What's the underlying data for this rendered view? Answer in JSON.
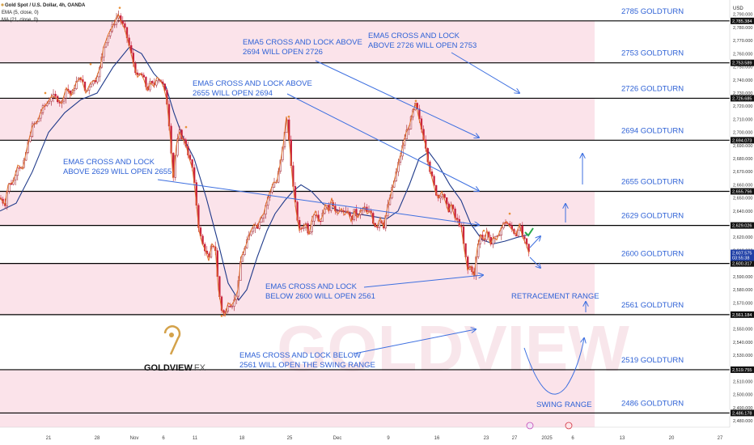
{
  "header": {
    "symbol": "Gold Spot / U.S. Dollar, 4h, OANDA",
    "ema": "EMA (5, close, 0)",
    "ma": "MA (21, close, 0)",
    "currency": "USD"
  },
  "logo": {
    "brand": "GOLDVIEW",
    "suffix": "FX"
  },
  "watermark": "GOLDVIEW",
  "colors": {
    "band": "#fbe3ea",
    "line": "#000000",
    "text_blue": "#2f62d6",
    "arrow_blue": "#3d6fe0",
    "ema": "#e0702a",
    "ma": "#1f3a8a",
    "up": "#9e1b2a",
    "down": "#c8203a",
    "gold": "#d4a24a",
    "check": "#2aa84a"
  },
  "chart_data": {
    "type": "candlestick",
    "title": "Gold Spot / U.S. Dollar, 4h, OANDA",
    "ylim": [
      2477,
      2796
    ],
    "ytick_step": 10,
    "x_ticks": [
      "21",
      "28",
      "Nov",
      "6",
      "11",
      "18",
      "25",
      "Dec",
      "9",
      "16",
      "23",
      "27",
      "2025",
      "6",
      "13",
      "20",
      "27"
    ],
    "goldturn_levels": [
      {
        "value": 2785,
        "label": "2785 GOLDTURN",
        "tag": "2,785.384"
      },
      {
        "value": 2753,
        "label": "2753 GOLDTURN",
        "tag": "2,753.589"
      },
      {
        "value": 2726,
        "label": "2726 GOLDTURN",
        "tag": "2,726.685"
      },
      {
        "value": 2694,
        "label": "2694 GOLDTURN",
        "tag": "2,694.073"
      },
      {
        "value": 2655,
        "label": "2655 GOLDTURN",
        "tag": "2,655.756"
      },
      {
        "value": 2629,
        "label": "2629 GOLDTURN",
        "tag": "2,629.026"
      },
      {
        "value": 2600,
        "label": "2600 GOLDTURN",
        "tag": "2,600.317"
      },
      {
        "value": 2561,
        "label": "2561 GOLDTURN",
        "tag": "2,561.184"
      },
      {
        "value": 2519,
        "label": "2519 GOLDTURN",
        "tag": "2,519.755"
      },
      {
        "value": 2486,
        "label": "2486 GOLDTURN",
        "tag": "2,486.178"
      }
    ],
    "current_price": {
      "value": 2607.5,
      "tag": "2,607.575",
      "countdown": "03:55:38"
    },
    "annotations": [
      {
        "lines": [
          "EMA5 CROSS AND LOCK ABOVE",
          "2694 WILL OPEN 2726"
        ]
      },
      {
        "lines": [
          "EMA5 CROSS AND LOCK",
          "ABOVE 2726 WILL OPEN 2753"
        ]
      },
      {
        "lines": [
          "EMA5 CROSS AND LOCK ABOVE",
          "2655 WILL OPEN 2694"
        ]
      },
      {
        "lines": [
          "EMA5 CROSS AND LOCK",
          "ABOVE 2629 WILL OPEN 2655"
        ]
      },
      {
        "lines": [
          "EMA5 CROSS AND LOCK",
          "BELOW 2600 WILL OPEN 2561"
        ]
      },
      {
        "lines": [
          "EMA5 CROSS AND LOCK BELOW",
          "2561 WILL OPEN THE SWING RANGE"
        ]
      }
    ],
    "range_labels": [
      "RETRACEMENT RANGE",
      "SWING RANGE"
    ],
    "price_path": [
      [
        0,
        2650
      ],
      [
        6,
        2645
      ],
      [
        10,
        2660
      ],
      [
        16,
        2662
      ],
      [
        22,
        2675
      ],
      [
        28,
        2672
      ],
      [
        34,
        2690
      ],
      [
        40,
        2705
      ],
      [
        46,
        2708
      ],
      [
        52,
        2718
      ],
      [
        58,
        2722
      ],
      [
        64,
        2728
      ],
      [
        70,
        2726
      ],
      [
        76,
        2722
      ],
      [
        82,
        2734
      ],
      [
        88,
        2728
      ],
      [
        94,
        2738
      ],
      [
        100,
        2742
      ],
      [
        106,
        2730
      ],
      [
        112,
        2738
      ],
      [
        118,
        2740
      ],
      [
        124,
        2750
      ],
      [
        128,
        2765
      ],
      [
        134,
        2775
      ],
      [
        140,
        2782
      ],
      [
        146,
        2790
      ],
      [
        150,
        2784
      ],
      [
        154,
        2779
      ],
      [
        158,
        2770
      ],
      [
        162,
        2760
      ],
      [
        166,
        2750
      ],
      [
        170,
        2742
      ],
      [
        174,
        2745
      ],
      [
        178,
        2740
      ],
      [
        182,
        2732
      ],
      [
        186,
        2738
      ],
      [
        190,
        2735
      ],
      [
        194,
        2742
      ],
      [
        198,
        2740
      ],
      [
        202,
        2735
      ],
      [
        206,
        2725
      ],
      [
        210,
        2700
      ],
      [
        214,
        2665
      ],
      [
        218,
        2690
      ],
      [
        222,
        2700
      ],
      [
        226,
        2695
      ],
      [
        230,
        2690
      ],
      [
        234,
        2680
      ],
      [
        238,
        2672
      ],
      [
        242,
        2650
      ],
      [
        246,
        2625
      ],
      [
        250,
        2615
      ],
      [
        254,
        2610
      ],
      [
        258,
        2602
      ],
      [
        262,
        2615
      ],
      [
        266,
        2612
      ],
      [
        270,
        2580
      ],
      [
        274,
        2565
      ],
      [
        278,
        2560
      ],
      [
        282,
        2570
      ],
      [
        286,
        2568
      ],
      [
        290,
        2572
      ],
      [
        294,
        2580
      ],
      [
        298,
        2605
      ],
      [
        302,
        2610
      ],
      [
        306,
        2618
      ],
      [
        310,
        2625
      ],
      [
        314,
        2630
      ],
      [
        318,
        2628
      ],
      [
        322,
        2635
      ],
      [
        326,
        2638
      ],
      [
        330,
        2648
      ],
      [
        334,
        2655
      ],
      [
        338,
        2662
      ],
      [
        342,
        2662
      ],
      [
        346,
        2675
      ],
      [
        350,
        2690
      ],
      [
        354,
        2712
      ],
      [
        358,
        2690
      ],
      [
        362,
        2660
      ],
      [
        366,
        2640
      ],
      [
        370,
        2625
      ],
      [
        374,
        2628
      ],
      [
        378,
        2630
      ],
      [
        382,
        2622
      ],
      [
        386,
        2635
      ],
      [
        390,
        2640
      ],
      [
        394,
        2632
      ],
      [
        398,
        2635
      ],
      [
        402,
        2645
      ],
      [
        406,
        2640
      ],
      [
        410,
        2650
      ],
      [
        414,
        2640
      ],
      [
        418,
        2638
      ],
      [
        422,
        2642
      ],
      [
        426,
        2637
      ],
      [
        430,
        2640
      ],
      [
        434,
        2632
      ],
      [
        438,
        2640
      ],
      [
        442,
        2635
      ],
      [
        446,
        2640
      ],
      [
        450,
        2643
      ],
      [
        454,
        2638
      ],
      [
        458,
        2640
      ],
      [
        462,
        2630
      ],
      [
        466,
        2628
      ],
      [
        470,
        2635
      ],
      [
        474,
        2628
      ],
      [
        478,
        2640
      ],
      [
        482,
        2650
      ],
      [
        486,
        2660
      ],
      [
        490,
        2670
      ],
      [
        494,
        2680
      ],
      [
        498,
        2690
      ],
      [
        502,
        2700
      ],
      [
        506,
        2705
      ],
      [
        510,
        2715
      ],
      [
        514,
        2722
      ],
      [
        518,
        2710
      ],
      [
        522,
        2700
      ],
      [
        526,
        2690
      ],
      [
        530,
        2675
      ],
      [
        534,
        2665
      ],
      [
        538,
        2655
      ],
      [
        542,
        2650
      ],
      [
        546,
        2655
      ],
      [
        550,
        2648
      ],
      [
        554,
        2640
      ],
      [
        558,
        2645
      ],
      [
        562,
        2635
      ],
      [
        566,
        2632
      ],
      [
        570,
        2628
      ],
      [
        574,
        2610
      ],
      [
        578,
        2595
      ],
      [
        582,
        2598
      ],
      [
        586,
        2590
      ],
      [
        590,
        2612
      ],
      [
        594,
        2622
      ],
      [
        598,
        2618
      ],
      [
        602,
        2625
      ],
      [
        606,
        2615
      ],
      [
        610,
        2620
      ],
      [
        614,
        2618
      ],
      [
        618,
        2625
      ],
      [
        622,
        2630
      ],
      [
        626,
        2632
      ],
      [
        630,
        2628
      ],
      [
        634,
        2625
      ],
      [
        638,
        2622
      ],
      [
        642,
        2630
      ],
      [
        646,
        2620
      ],
      [
        650,
        2615
      ],
      [
        654,
        2607.5
      ]
    ],
    "ma_path": [
      [
        0,
        2640
      ],
      [
        20,
        2646
      ],
      [
        40,
        2670
      ],
      [
        60,
        2700
      ],
      [
        80,
        2715
      ],
      [
        100,
        2725
      ],
      [
        120,
        2730
      ],
      [
        140,
        2750
      ],
      [
        160,
        2765
      ],
      [
        175,
        2760
      ],
      [
        190,
        2745
      ],
      [
        205,
        2735
      ],
      [
        215,
        2715
      ],
      [
        225,
        2698
      ],
      [
        240,
        2680
      ],
      [
        255,
        2650
      ],
      [
        270,
        2615
      ],
      [
        282,
        2585
      ],
      [
        295,
        2572
      ],
      [
        305,
        2580
      ],
      [
        318,
        2605
      ],
      [
        330,
        2625
      ],
      [
        340,
        2638
      ],
      [
        352,
        2648
      ],
      [
        362,
        2655
      ],
      [
        372,
        2660
      ],
      [
        385,
        2655
      ],
      [
        400,
        2645
      ],
      [
        420,
        2640
      ],
      [
        440,
        2638
      ],
      [
        460,
        2636
      ],
      [
        478,
        2634
      ],
      [
        492,
        2640
      ],
      [
        506,
        2660
      ],
      [
        518,
        2680
      ],
      [
        530,
        2685
      ],
      [
        542,
        2675
      ],
      [
        556,
        2660
      ],
      [
        570,
        2648
      ],
      [
        582,
        2630
      ],
      [
        596,
        2618
      ],
      [
        610,
        2615
      ],
      [
        624,
        2617
      ],
      [
        640,
        2620
      ],
      [
        654,
        2622
      ]
    ],
    "pivot_markers": [
      [
        148,
        2795
      ],
      [
        56,
        2730
      ],
      [
        112,
        2752
      ],
      [
        230,
        2704
      ],
      [
        357,
        2712
      ],
      [
        514,
        2724
      ],
      [
        630,
        2638
      ],
      [
        598,
        2625
      ],
      [
        274,
        2560
      ]
    ]
  }
}
